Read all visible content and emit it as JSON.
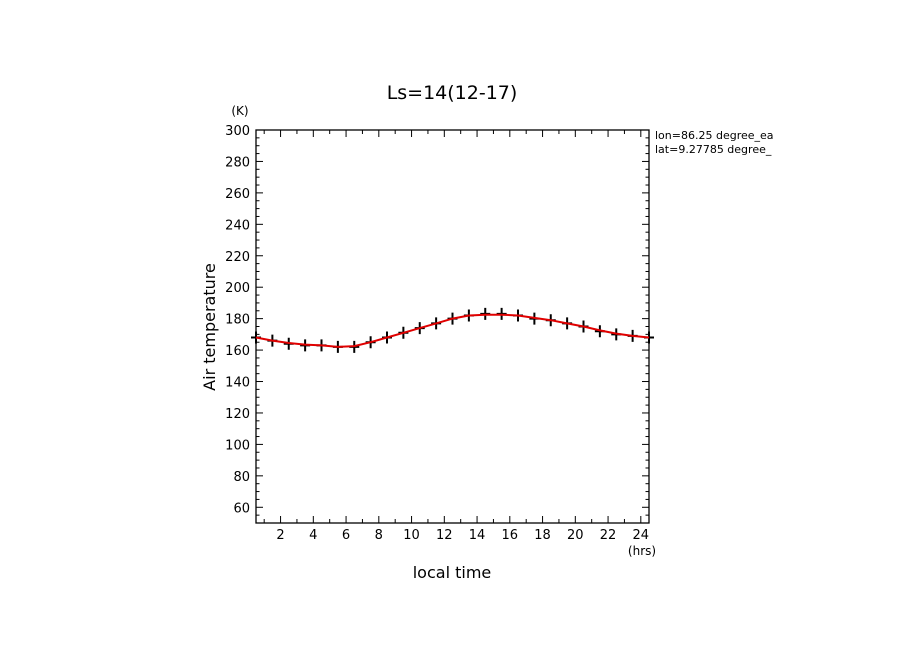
{
  "chart_data": {
    "type": "line",
    "title": "Ls=14(12-17)",
    "xlabel": "local time",
    "ylabel": "Air temperature",
    "x_unit": "(hrs)",
    "y_unit": "(K)",
    "xlim": [
      0.5,
      24.5
    ],
    "ylim": [
      50,
      300
    ],
    "xticks": [
      2,
      4,
      6,
      8,
      10,
      12,
      14,
      16,
      18,
      20,
      22,
      24
    ],
    "yticks": [
      60,
      80,
      100,
      120,
      140,
      160,
      180,
      200,
      220,
      240,
      260,
      280,
      300
    ],
    "annotations": [
      "lon=86.25 degree_ea",
      "lat=9.27785 degree_"
    ],
    "grid": false,
    "series": [
      {
        "marker": "plus",
        "color": "#000000",
        "x": [
          0.5,
          1.5,
          2.5,
          3.5,
          4.5,
          5.5,
          6.5,
          7.5,
          8.5,
          9.5,
          10.5,
          11.5,
          12.5,
          13.5,
          14.5,
          15.5,
          16.5,
          17.5,
          18.5,
          19.5,
          20.5,
          21.5,
          22.5,
          23.5,
          24.5
        ],
        "y": [
          168,
          166,
          164,
          163,
          163,
          162,
          162,
          165,
          168,
          171,
          174,
          177,
          180,
          182,
          183,
          183,
          182,
          180,
          179,
          177,
          175,
          172,
          170,
          169,
          168
        ]
      },
      {
        "marker": "none",
        "color": "#e00000",
        "x": [
          0.5,
          1.5,
          2.5,
          3.5,
          4.5,
          5.5,
          6.5,
          7.5,
          8.5,
          9.5,
          10.5,
          11.5,
          12.5,
          13.5,
          14.5,
          15.5,
          16.5,
          17.5,
          18.5,
          19.5,
          20.5,
          21.5,
          22.5,
          23.5,
          24.5
        ],
        "y": [
          168,
          166,
          164.5,
          163.5,
          163,
          162,
          162.5,
          165,
          168,
          171,
          174,
          177,
          180,
          182,
          182.5,
          182.5,
          182,
          180.5,
          179,
          177,
          175,
          172.5,
          170.5,
          169,
          168
        ]
      }
    ]
  }
}
